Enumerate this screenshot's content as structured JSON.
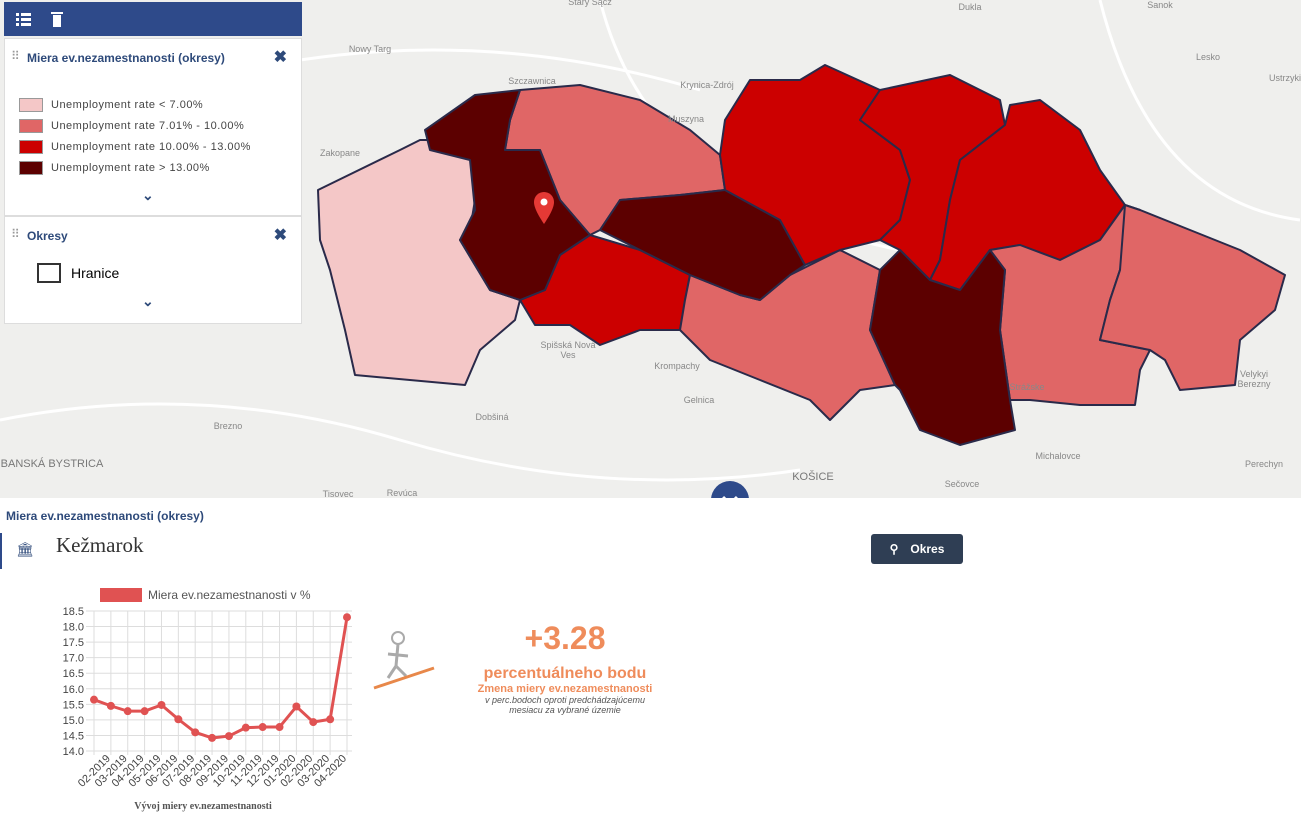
{
  "legend_panel": {
    "title": "Miera ev.nezamestnanosti (okresy)",
    "items": [
      {
        "label": "Unemployment rate < 7.00%",
        "color": "#f4c7c7"
      },
      {
        "label": "Unemployment rate 7.01% - 10.00%",
        "color": "#e06666"
      },
      {
        "label": "Unemployment rate 10.00% - 13.00%",
        "color": "#cc0000"
      },
      {
        "label": "Unemployment rate > 13.00%",
        "color": "#5c0000"
      }
    ]
  },
  "okresy_panel": {
    "title": "Okresy",
    "item": "Hranice"
  },
  "map_labels": [
    "Stary Sącz",
    "Dukla",
    "Sanok",
    "Nowy Targ",
    "Lesko",
    "Szczawnica",
    "Krynica-Zdrój",
    "Ustrzyki",
    "Muszyna",
    "Zakopane",
    "Spišská Nová",
    "Ves",
    "Krompachy",
    "Gelnica",
    "Dobšiná",
    "Brezno",
    "BANSKÁ BYSTRICA",
    "Tisovec",
    "Revúca",
    "KOŠICE",
    "Sečovce",
    "Michalovce",
    "Strážske",
    "Perechyn",
    "Velykyi",
    "Berezny"
  ],
  "section_title": "Miera ev.nezamestnanosti (okresy)",
  "district": "Kežmarok",
  "button": "Okres",
  "chart_data": {
    "type": "line",
    "legend": "Miera ev.nezamestnanosti v %",
    "x_label": "Vývoj miery ev.nezamestnanosti",
    "categories": [
      null,
      "02-2019",
      "03-2019",
      "04-2019",
      "05-2019",
      "06-2019",
      "07-2019",
      "08-2019",
      "09-2019",
      "10-2019",
      "11-2019",
      "12-2019",
      "01-2020",
      "02-2020",
      "03-2020",
      "04-2020"
    ],
    "series": [
      {
        "name": "Miera ev.nezamestnanosti v %",
        "color": "#e05252",
        "values": [
          15.65,
          15.45,
          15.28,
          15.28,
          15.48,
          15.02,
          14.6,
          14.42,
          14.48,
          14.75,
          14.77,
          14.77,
          15.43,
          14.93,
          15.02,
          18.3
        ]
      }
    ],
    "ylim": [
      14,
      18.5
    ],
    "yticks": [
      {
        "value": 14,
        "label": "14.0"
      },
      {
        "value": 14.5,
        "label": "14.5"
      },
      {
        "value": 15,
        "label": "15.0"
      },
      {
        "value": 15.5,
        "label": "15.5"
      },
      {
        "value": 16,
        "label": "16.0"
      },
      {
        "value": 16.5,
        "label": "16.5"
      },
      {
        "value": 17,
        "label": "17.0"
      },
      {
        "value": 17.5,
        "label": "17.5"
      },
      {
        "value": 18,
        "label": "18.0"
      },
      {
        "value": 18.5,
        "label": "18.5"
      }
    ],
    "grid": true
  },
  "kpi": {
    "value": "+3.28",
    "unit": "percentuálneho bodu",
    "caption": "Zmena miery ev.nezamestnanosti",
    "note": [
      "v perc.bodoch oproti predchádzajúcemu",
      "mesiacu za vybrané územie"
    ]
  }
}
